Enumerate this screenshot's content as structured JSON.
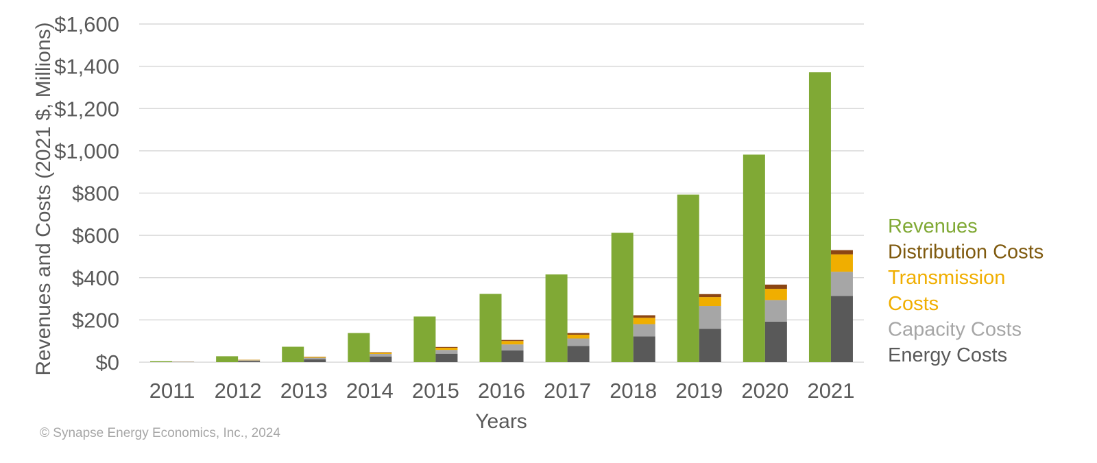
{
  "chart_data": {
    "type": "bar",
    "stacked_costs": true,
    "categories": [
      "2011",
      "2012",
      "2013",
      "2014",
      "2015",
      "2016",
      "2017",
      "2018",
      "2019",
      "2020",
      "2021"
    ],
    "ylabel": "Revenues and Costs (2021 $, Millions)",
    "xlabel": "Years",
    "ylim": [
      0,
      1600
    ],
    "yticks": [
      {
        "value": 0,
        "label": "$0"
      },
      {
        "value": 200,
        "label": "$200"
      },
      {
        "value": 400,
        "label": "$400"
      },
      {
        "value": 600,
        "label": "$600"
      },
      {
        "value": 800,
        "label": "$800"
      },
      {
        "value": 1000,
        "label": "$1,000"
      },
      {
        "value": 1200,
        "label": "$1,200"
      },
      {
        "value": 1400,
        "label": "$1,400"
      },
      {
        "value": 1600,
        "label": "$1,600"
      }
    ],
    "grid": true,
    "legend_position": "right",
    "revenues": {
      "name": "Revenues",
      "color": "#80a935",
      "values": [
        5,
        28,
        73,
        138,
        216,
        323,
        415,
        612,
        793,
        982,
        1372
      ]
    },
    "cost_series": [
      {
        "name": "Energy Costs",
        "color": "#595959",
        "values": [
          1,
          6,
          14,
          27,
          40,
          56,
          77,
          122,
          158,
          192,
          313
        ]
      },
      {
        "name": "Capacity Costs",
        "color": "#a6a6a6",
        "values": [
          1,
          3,
          7,
          12,
          18,
          28,
          35,
          58,
          108,
          102,
          115
        ]
      },
      {
        "name": "Transmission Costs",
        "color": "#f0ae00",
        "values": [
          0.5,
          2,
          4,
          6,
          10,
          16,
          18,
          30,
          42,
          53,
          82
        ]
      },
      {
        "name": "Distribution Costs",
        "color": "#8b4513",
        "values": [
          0.3,
          0.5,
          1,
          2,
          4,
          5,
          8,
          12,
          14,
          20,
          20
        ]
      }
    ],
    "legend": [
      {
        "label": "Revenues",
        "color": "#80a935"
      },
      {
        "label": "Distribution Costs",
        "color": "#7f5a0f"
      },
      {
        "label": "Transmission",
        "color": "#f0ae00"
      },
      {
        "label": "Costs",
        "color": "#f0ae00"
      },
      {
        "label": "Capacity Costs",
        "color": "#a6a6a6"
      },
      {
        "label": "Energy Costs",
        "color": "#595959"
      }
    ]
  },
  "copyright": "© Synapse Energy Economics, Inc., 2024"
}
